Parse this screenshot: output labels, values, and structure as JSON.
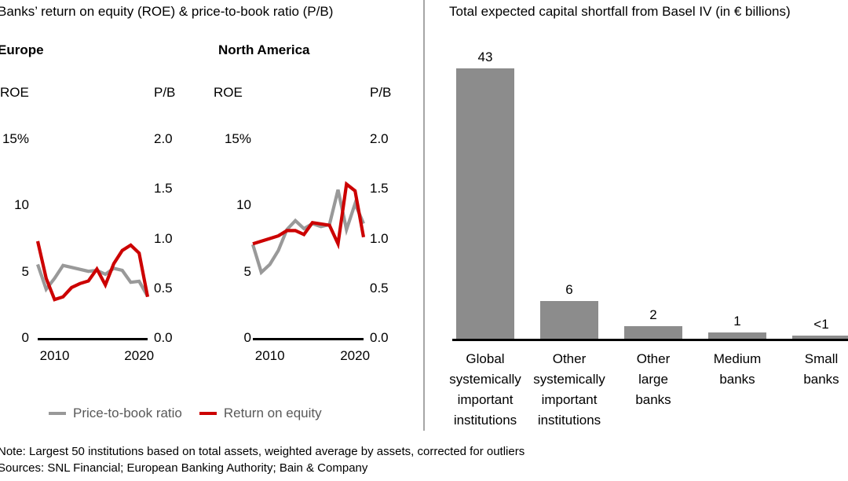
{
  "left_panel": {
    "title": "Banks’ return on equity (ROE) & price-to-book ratio (P/B)",
    "legend": [
      {
        "label": "Price-to-book ratio",
        "color": "#999999"
      },
      {
        "label": "Return on equity",
        "color": "#cc0000"
      }
    ]
  },
  "right_panel": {
    "title": "Total expected capital shortfall from Basel IV (in € billions)"
  },
  "footer": {
    "note": "Note: Largest 50 institutions based on total assets, weighted average by assets, corrected for outliers",
    "sources": "Sources: SNL Financial; European Banking Authority; Bain & Company"
  },
  "chart_data": [
    {
      "type": "line",
      "title": "Europe",
      "x": [
        2008,
        2009,
        2010,
        2011,
        2012,
        2013,
        2014,
        2015,
        2016,
        2017,
        2018,
        2019,
        2020,
        2021
      ],
      "x_ticks": [
        "2010",
        "2020"
      ],
      "left_axis": {
        "label": "ROE",
        "ticks": [
          "15%",
          "10",
          "5",
          "0"
        ],
        "range": [
          0,
          15
        ]
      },
      "right_axis": {
        "label": "P/B",
        "ticks": [
          "2.0",
          "1.5",
          "1.0",
          "0.5",
          "0.0"
        ],
        "range": [
          0,
          2
        ]
      },
      "series": [
        {
          "name": "Price-to-book ratio",
          "axis": "right",
          "color": "#999999",
          "values": [
            0.74,
            0.49,
            0.6,
            0.73,
            0.71,
            0.69,
            0.67,
            0.68,
            0.64,
            0.7,
            0.68,
            0.56,
            0.57,
            0.42
          ]
        },
        {
          "name": "Return on equity",
          "axis": "left",
          "color": "#cc0000",
          "values": [
            7.3,
            4.5,
            2.9,
            3.1,
            3.8,
            4.1,
            4.3,
            5.2,
            4.0,
            5.6,
            6.6,
            7.0,
            6.4,
            3.1
          ]
        }
      ]
    },
    {
      "type": "line",
      "title": "North America",
      "x": [
        2008,
        2009,
        2010,
        2011,
        2012,
        2013,
        2014,
        2015,
        2016,
        2017,
        2018,
        2019,
        2020,
        2021
      ],
      "x_ticks": [
        "2010",
        "2020"
      ],
      "left_axis": {
        "label": "ROE",
        "ticks": [
          "15%",
          "10",
          "5",
          "0"
        ],
        "range": [
          0,
          15
        ]
      },
      "right_axis": {
        "label": "P/B",
        "ticks": [
          "2.0",
          "1.5",
          "1.0",
          "0.5",
          "0.0"
        ],
        "range": [
          0,
          2
        ]
      },
      "series": [
        {
          "name": "Price-to-book ratio",
          "axis": "right",
          "color": "#999999",
          "values": [
            0.94,
            0.66,
            0.74,
            0.88,
            1.09,
            1.18,
            1.1,
            1.15,
            1.12,
            1.14,
            1.49,
            1.09,
            1.35,
            1.15
          ]
        },
        {
          "name": "Return on equity",
          "axis": "left",
          "color": "#cc0000",
          "values": [
            7.1,
            7.3,
            7.5,
            7.7,
            8.1,
            8.1,
            7.8,
            8.7,
            8.6,
            8.5,
            7.1,
            11.6,
            11.1,
            7.6
          ]
        }
      ]
    },
    {
      "type": "bar",
      "title": "Total expected capital shortfall from Basel IV (in € billions)",
      "categories": [
        "Global systemically important institutions",
        "Other systemically important institutions",
        "Other large banks",
        "Medium banks",
        "Small banks"
      ],
      "category_lines": [
        [
          "Global",
          "systemically",
          "important",
          "institutions"
        ],
        [
          "Other",
          "systemically",
          "important",
          "institutions"
        ],
        [
          "Other",
          "large",
          "banks"
        ],
        [
          "Medium",
          "banks"
        ],
        [
          "Small",
          "banks"
        ]
      ],
      "values": [
        43,
        6,
        2,
        1,
        0.5
      ],
      "value_labels": [
        "43",
        "6",
        "2",
        "1",
        "<1"
      ],
      "bar_color": "#8c8c8c",
      "ylim": [
        0,
        45
      ]
    }
  ]
}
